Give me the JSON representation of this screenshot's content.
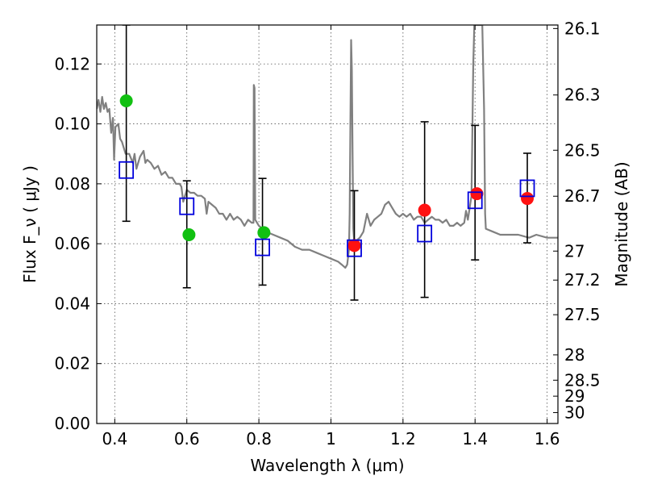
{
  "chart_data": {
    "type": "scatter",
    "xlabel": "Wavelength  λ (μm)",
    "ylabel": "Flux  F_ν  ( μJy )",
    "y2label": "Magnitude (AB)",
    "xlim": [
      0.35,
      1.63
    ],
    "ylim": [
      0.0,
      0.133
    ],
    "grid": true,
    "x_ticks": [
      "0.4",
      "0.6",
      "0.8",
      "1",
      "1.2",
      "1.4",
      "1.6"
    ],
    "y_ticks": [
      "0.00",
      "0.02",
      "0.04",
      "0.06",
      "0.08",
      "0.10",
      "0.12"
    ],
    "y2_ticks": [
      {
        "label": "26.1",
        "mag": 26.1
      },
      {
        "label": "26.3",
        "mag": 26.3
      },
      {
        "label": "26.5",
        "mag": 26.5
      },
      {
        "label": "26.7",
        "mag": 26.7
      },
      {
        "label": "27",
        "mag": 27.0
      },
      {
        "label": "27.2",
        "mag": 27.2
      },
      {
        "label": "27.5",
        "mag": 27.5
      },
      {
        "label": "28",
        "mag": 28.0
      },
      {
        "label": "28.5",
        "mag": 28.5
      },
      {
        "label": "29",
        "mag": 29.0
      },
      {
        "label": "30",
        "mag": 30.0
      }
    ],
    "model_spectrum": {
      "color": "#808080",
      "points": [
        [
          0.35,
          0.105
        ],
        [
          0.355,
          0.108
        ],
        [
          0.36,
          0.104
        ],
        [
          0.365,
          0.109
        ],
        [
          0.37,
          0.105
        ],
        [
          0.375,
          0.107
        ],
        [
          0.38,
          0.104
        ],
        [
          0.385,
          0.105
        ],
        [
          0.39,
          0.097
        ],
        [
          0.395,
          0.102
        ],
        [
          0.398,
          0.088
        ],
        [
          0.402,
          0.099
        ],
        [
          0.41,
          0.1
        ],
        [
          0.415,
          0.095
        ],
        [
          0.42,
          0.094
        ],
        [
          0.43,
          0.09
        ],
        [
          0.44,
          0.09
        ],
        [
          0.45,
          0.087
        ],
        [
          0.455,
          0.09
        ],
        [
          0.46,
          0.085
        ],
        [
          0.47,
          0.089
        ],
        [
          0.48,
          0.091
        ],
        [
          0.485,
          0.087
        ],
        [
          0.49,
          0.088
        ],
        [
          0.5,
          0.087
        ],
        [
          0.51,
          0.085
        ],
        [
          0.52,
          0.086
        ],
        [
          0.53,
          0.083
        ],
        [
          0.54,
          0.084
        ],
        [
          0.55,
          0.082
        ],
        [
          0.56,
          0.082
        ],
        [
          0.57,
          0.08
        ],
        [
          0.58,
          0.08
        ],
        [
          0.585,
          0.079
        ],
        [
          0.59,
          0.074
        ],
        [
          0.6,
          0.078
        ],
        [
          0.61,
          0.077
        ],
        [
          0.62,
          0.077
        ],
        [
          0.63,
          0.076
        ],
        [
          0.64,
          0.076
        ],
        [
          0.65,
          0.075
        ],
        [
          0.655,
          0.07
        ],
        [
          0.66,
          0.074
        ],
        [
          0.67,
          0.073
        ],
        [
          0.68,
          0.072
        ],
        [
          0.69,
          0.07
        ],
        [
          0.7,
          0.07
        ],
        [
          0.71,
          0.068
        ],
        [
          0.72,
          0.07
        ],
        [
          0.73,
          0.068
        ],
        [
          0.74,
          0.069
        ],
        [
          0.75,
          0.068
        ],
        [
          0.76,
          0.066
        ],
        [
          0.77,
          0.068
        ],
        [
          0.78,
          0.067
        ],
        [
          0.785,
          0.067
        ],
        [
          0.786,
          0.113
        ],
        [
          0.788,
          0.112
        ],
        [
          0.79,
          0.068
        ],
        [
          0.8,
          0.066
        ],
        [
          0.82,
          0.064
        ],
        [
          0.84,
          0.063
        ],
        [
          0.86,
          0.062
        ],
        [
          0.88,
          0.061
        ],
        [
          0.9,
          0.059
        ],
        [
          0.92,
          0.058
        ],
        [
          0.94,
          0.058
        ],
        [
          0.96,
          0.057
        ],
        [
          0.98,
          0.056
        ],
        [
          1.0,
          0.055
        ],
        [
          1.02,
          0.054
        ],
        [
          1.03,
          0.053
        ],
        [
          1.04,
          0.052
        ],
        [
          1.045,
          0.053
        ],
        [
          1.05,
          0.058
        ],
        [
          1.052,
          0.07
        ],
        [
          1.054,
          0.1
        ],
        [
          1.056,
          0.128
        ],
        [
          1.058,
          0.118
        ],
        [
          1.06,
          0.09
        ],
        [
          1.062,
          0.065
        ],
        [
          1.065,
          0.06
        ],
        [
          1.07,
          0.061
        ],
        [
          1.08,
          0.062
        ],
        [
          1.09,
          0.064
        ],
        [
          1.1,
          0.07
        ],
        [
          1.105,
          0.068
        ],
        [
          1.11,
          0.066
        ],
        [
          1.12,
          0.068
        ],
        [
          1.13,
          0.069
        ],
        [
          1.14,
          0.07
        ],
        [
          1.15,
          0.073
        ],
        [
          1.16,
          0.074
        ],
        [
          1.17,
          0.072
        ],
        [
          1.18,
          0.07
        ],
        [
          1.19,
          0.069
        ],
        [
          1.2,
          0.07
        ],
        [
          1.21,
          0.069
        ],
        [
          1.22,
          0.07
        ],
        [
          1.23,
          0.068
        ],
        [
          1.24,
          0.069
        ],
        [
          1.25,
          0.069
        ],
        [
          1.26,
          0.067
        ],
        [
          1.27,
          0.068
        ],
        [
          1.28,
          0.069
        ],
        [
          1.29,
          0.068
        ],
        [
          1.3,
          0.068
        ],
        [
          1.31,
          0.067
        ],
        [
          1.32,
          0.068
        ],
        [
          1.33,
          0.066
        ],
        [
          1.34,
          0.066
        ],
        [
          1.35,
          0.067
        ],
        [
          1.36,
          0.066
        ],
        [
          1.37,
          0.067
        ],
        [
          1.375,
          0.071
        ],
        [
          1.38,
          0.068
        ],
        [
          1.39,
          0.076
        ],
        [
          1.395,
          0.12
        ],
        [
          1.398,
          0.133
        ],
        [
          1.42,
          0.133
        ],
        [
          1.425,
          0.105
        ],
        [
          1.428,
          0.07
        ],
        [
          1.43,
          0.065
        ],
        [
          1.45,
          0.064
        ],
        [
          1.47,
          0.063
        ],
        [
          1.5,
          0.063
        ],
        [
          1.52,
          0.063
        ],
        [
          1.55,
          0.062
        ],
        [
          1.57,
          0.063
        ],
        [
          1.6,
          0.062
        ],
        [
          1.63,
          0.062
        ]
      ]
    },
    "series": [
      {
        "marker": "circle",
        "color": "#11c011",
        "points": [
          {
            "x": 0.432,
            "y": 0.1077
          },
          {
            "x": 0.606,
            "y": 0.063
          },
          {
            "x": 0.814,
            "y": 0.0637
          }
        ]
      },
      {
        "marker": "circle",
        "color": "#ff1111",
        "points": [
          {
            "x": 1.065,
            "y": 0.0594
          },
          {
            "x": 1.26,
            "y": 0.0712
          },
          {
            "x": 1.405,
            "y": 0.0767
          },
          {
            "x": 1.545,
            "y": 0.0751
          }
        ]
      },
      {
        "marker": "open-square",
        "color": "#0000dd",
        "points": [
          {
            "x": 0.432,
            "y": 0.0846,
            "err_lo": 0.0675,
            "err_hi": 0.133
          },
          {
            "x": 0.6,
            "y": 0.0725,
            "err_lo": 0.0453,
            "err_hi": 0.081
          },
          {
            "x": 0.81,
            "y": 0.0588,
            "err_lo": 0.0462,
            "err_hi": 0.0818
          },
          {
            "x": 1.065,
            "y": 0.0585,
            "err_lo": 0.0412,
            "err_hi": 0.0777
          },
          {
            "x": 1.26,
            "y": 0.0634,
            "err_lo": 0.0421,
            "err_hi": 0.1007
          },
          {
            "x": 1.4,
            "y": 0.0745,
            "err_lo": 0.0546,
            "err_hi": 0.0995
          },
          {
            "x": 1.545,
            "y": 0.0785,
            "err_lo": 0.0603,
            "err_hi": 0.0902
          }
        ]
      }
    ]
  }
}
